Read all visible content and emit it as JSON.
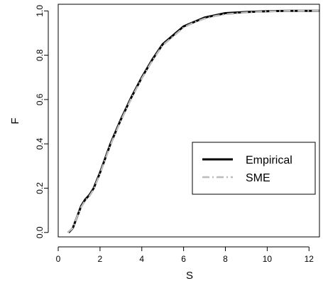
{
  "chart_data": {
    "type": "line",
    "title": "",
    "xlabel": "S",
    "ylabel": "F",
    "xlim": [
      0.0,
      12.5
    ],
    "ylim": [
      -0.02,
      1.03
    ],
    "xticks": [
      0,
      2,
      4,
      6,
      8,
      10,
      12
    ],
    "yticks": [
      0.0,
      0.2,
      0.4,
      0.6,
      0.8,
      1.0
    ],
    "xtick_labels": [
      "0",
      "2",
      "4",
      "6",
      "8",
      "10",
      "12"
    ],
    "ytick_labels": [
      "0.0",
      "0.2",
      "0.4",
      "0.6",
      "0.8",
      "1.0"
    ],
    "grid": false,
    "legend_position": "center-right",
    "series": [
      {
        "name": "Empirical",
        "color": "#000000",
        "style": "solid",
        "x": [
          0.5,
          0.7,
          0.9,
          1.1,
          1.3,
          1.5,
          1.7,
          2.0,
          2.5,
          3.0,
          3.5,
          4.0,
          4.5,
          5.0,
          5.5,
          6.0,
          6.5,
          7.0,
          7.5,
          8.0,
          9.0,
          10.0,
          11.0,
          12.0,
          12.5
        ],
        "y": [
          0.0,
          0.02,
          0.07,
          0.12,
          0.15,
          0.17,
          0.2,
          0.27,
          0.4,
          0.51,
          0.61,
          0.7,
          0.78,
          0.85,
          0.89,
          0.93,
          0.95,
          0.97,
          0.98,
          0.99,
          0.995,
          0.999,
          1.0,
          1.0,
          1.0
        ]
      },
      {
        "name": "SME",
        "color": "#bbbbbb",
        "style": "dashdot",
        "x": [
          0.45,
          0.7,
          0.9,
          1.1,
          1.3,
          1.5,
          1.7,
          2.0,
          2.5,
          3.0,
          3.5,
          4.0,
          4.5,
          5.0,
          5.5,
          6.0,
          6.5,
          7.0,
          7.5,
          8.0,
          9.0,
          10.0,
          11.0,
          12.0,
          12.5
        ],
        "y": [
          0.0,
          0.02,
          0.07,
          0.115,
          0.145,
          0.165,
          0.195,
          0.265,
          0.395,
          0.505,
          0.605,
          0.695,
          0.775,
          0.845,
          0.885,
          0.925,
          0.948,
          0.965,
          0.977,
          0.985,
          0.993,
          0.998,
          1.0,
          1.0,
          1.0
        ]
      }
    ]
  }
}
